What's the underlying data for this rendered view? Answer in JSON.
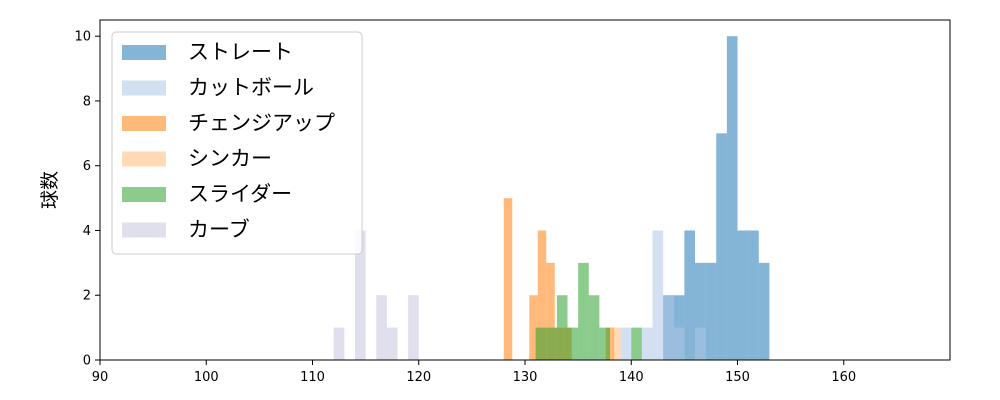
{
  "chart_data": {
    "type": "histogram",
    "xlabel": "",
    "ylabel": "球数",
    "xlim": [
      90,
      170
    ],
    "ylim": [
      0,
      10.5
    ],
    "xticks": [
      90,
      100,
      110,
      120,
      130,
      140,
      150,
      160
    ],
    "yticks": [
      0,
      2,
      4,
      6,
      8,
      10
    ],
    "grid": false,
    "legend_position": "top-left",
    "series": [
      {
        "name": "ストレート",
        "color": "#1f77b4",
        "bin_width": 1,
        "bins": [
          [
            143,
            2
          ],
          [
            144,
            2
          ],
          [
            145,
            4
          ],
          [
            146,
            3
          ],
          [
            147,
            3
          ],
          [
            148,
            7
          ],
          [
            149,
            10
          ],
          [
            150,
            4
          ],
          [
            151,
            4
          ],
          [
            152,
            3
          ]
        ]
      },
      {
        "name": "カットボール",
        "color": "#aec7e8",
        "bin_width": 1,
        "bins": [
          [
            139,
            1
          ],
          [
            141,
            1
          ],
          [
            142,
            4
          ],
          [
            143,
            2
          ],
          [
            144,
            1
          ],
          [
            146,
            1
          ]
        ]
      },
      {
        "name": "チェンジアップ",
        "color": "#ff7f0e",
        "bin_width": 0.8,
        "bins": [
          [
            128.0,
            5
          ],
          [
            130.4,
            2
          ],
          [
            131.2,
            4
          ],
          [
            132.0,
            3
          ],
          [
            132.8,
            1
          ],
          [
            133.6,
            1
          ],
          [
            137.6,
            1
          ]
        ]
      },
      {
        "name": "シンカー",
        "color": "#ffbb78",
        "bin_width": 1,
        "bins": [
          [
            138,
            1
          ]
        ]
      },
      {
        "name": "スライダー",
        "color": "#2ca02c",
        "bin_width": 1,
        "bins": [
          [
            131,
            1
          ],
          [
            132,
            1
          ],
          [
            133,
            2
          ],
          [
            134,
            1
          ],
          [
            135,
            3
          ],
          [
            136,
            2
          ],
          [
            137,
            1
          ],
          [
            140,
            1
          ]
        ]
      },
      {
        "name": "カーブ",
        "color": "#c5c5e0",
        "bin_width": 1,
        "bins": [
          [
            112,
            1
          ],
          [
            114,
            4
          ],
          [
            116,
            2
          ],
          [
            117,
            1
          ],
          [
            119,
            2
          ]
        ]
      }
    ]
  }
}
